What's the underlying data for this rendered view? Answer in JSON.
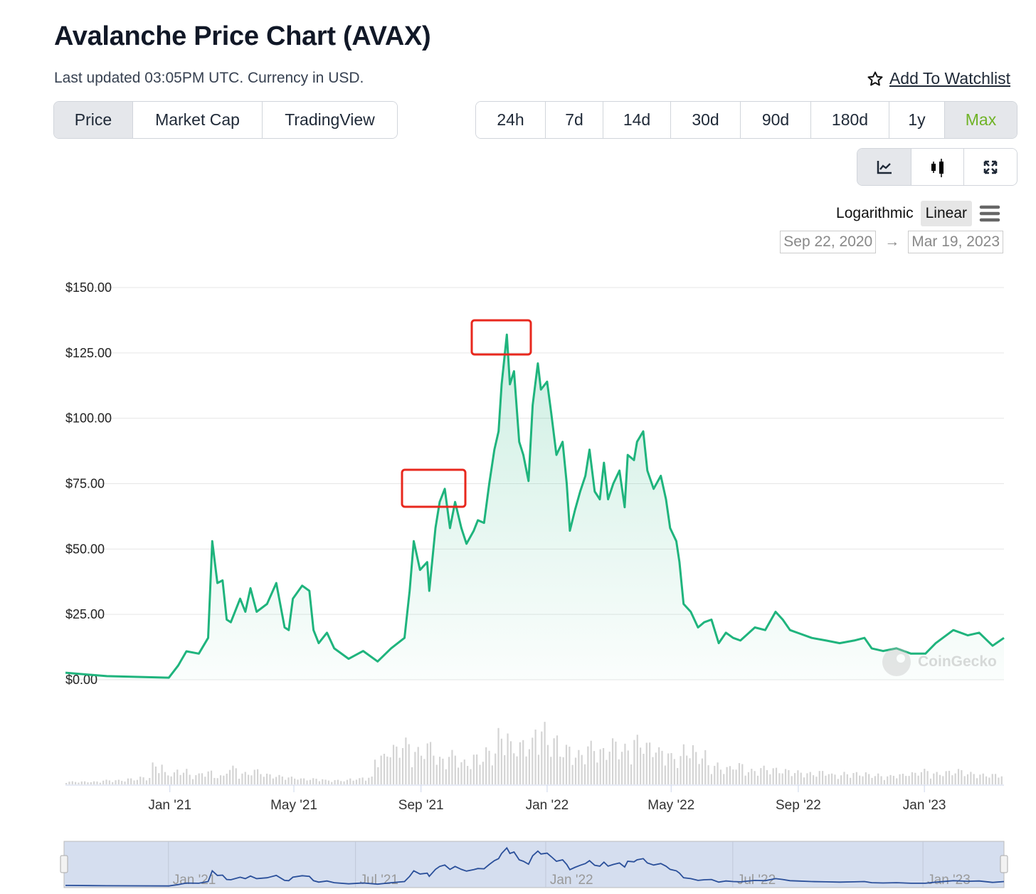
{
  "header": {
    "title": "Avalanche Price Chart (AVAX)",
    "subtitle": "Last updated 03:05PM UTC. Currency in USD.",
    "watchlist": "Add To Watchlist"
  },
  "tabs": [
    {
      "label": "Price",
      "active": true
    },
    {
      "label": "Market Cap"
    },
    {
      "label": "TradingView"
    }
  ],
  "ranges": [
    {
      "label": "24h"
    },
    {
      "label": "7d"
    },
    {
      "label": "14d"
    },
    {
      "label": "30d"
    },
    {
      "label": "90d"
    },
    {
      "label": "180d"
    },
    {
      "label": "1y"
    },
    {
      "label": "Max",
      "active": true
    }
  ],
  "chart_tools": [
    "line-chart-icon",
    "candlestick-icon",
    "fullscreen-icon"
  ],
  "scale": {
    "log": "Logarithmic",
    "linear": "Linear",
    "active": "Linear"
  },
  "date_range": {
    "from": "Sep 22, 2020",
    "to": "Mar 19, 2023",
    "arrow": "→"
  },
  "colors": {
    "line": "#1fb47d",
    "accent": "#6fb326",
    "highlight": "#e8281e",
    "nav_line": "#2a4f9a",
    "nav_bg": "#d5deef"
  },
  "watermark": "CoinGecko",
  "chart_data": {
    "type": "line",
    "title": "Avalanche Price Chart (AVAX)",
    "x_unit": "days since Sep 22, 2020",
    "xlim": [
      0,
      908
    ],
    "ylim": [
      0,
      150
    ],
    "yticks": [
      {
        "v": 0,
        "label": "$0.00"
      },
      {
        "v": 25,
        "label": "$25.00"
      },
      {
        "v": 50,
        "label": "$50.00"
      },
      {
        "v": 75,
        "label": "$75.00"
      },
      {
        "v": 100,
        "label": "$100.00"
      },
      {
        "v": 125,
        "label": "$125.00"
      },
      {
        "v": 150,
        "label": "$150.00"
      }
    ],
    "xticks": [
      {
        "d": 101,
        "label": "Jan '21"
      },
      {
        "d": 221,
        "label": "May '21"
      },
      {
        "d": 344,
        "label": "Sep '21"
      },
      {
        "d": 466,
        "label": "Jan '22"
      },
      {
        "d": 586,
        "label": "May '22"
      },
      {
        "d": 709,
        "label": "Sep '22"
      },
      {
        "d": 831,
        "label": "Jan '23"
      }
    ],
    "nav_ticks": [
      {
        "d": 101,
        "label": "Jan '21"
      },
      {
        "d": 282,
        "label": "Jul '21"
      },
      {
        "d": 466,
        "label": "Jan '22"
      },
      {
        "d": 647,
        "label": "Jul '22"
      },
      {
        "d": 831,
        "label": "Jan '23"
      }
    ],
    "series": [
      {
        "name": "AVAX Price (USD)",
        "points": [
          [
            0,
            2.7
          ],
          [
            40,
            1.4
          ],
          [
            100,
            0.8
          ],
          [
            109,
            5.4
          ],
          [
            117,
            10.9
          ],
          [
            129,
            10
          ],
          [
            138,
            16
          ],
          [
            142,
            53
          ],
          [
            147,
            37
          ],
          [
            152,
            38
          ],
          [
            156,
            23
          ],
          [
            160,
            22
          ],
          [
            169,
            31
          ],
          [
            174,
            26
          ],
          [
            179,
            35
          ],
          [
            185,
            26
          ],
          [
            195,
            29
          ],
          [
            204,
            37
          ],
          [
            212,
            20
          ],
          [
            216,
            19
          ],
          [
            220,
            31
          ],
          [
            229,
            36
          ],
          [
            236,
            34
          ],
          [
            240,
            19
          ],
          [
            245,
            14
          ],
          [
            253,
            18
          ],
          [
            260,
            12
          ],
          [
            274,
            8
          ],
          [
            288,
            11
          ],
          [
            302,
            7
          ],
          [
            315,
            12
          ],
          [
            328,
            16
          ],
          [
            333,
            34
          ],
          [
            337,
            53
          ],
          [
            343,
            42
          ],
          [
            350,
            45
          ],
          [
            352,
            34
          ],
          [
            358,
            58
          ],
          [
            362,
            68
          ],
          [
            367,
            73
          ],
          [
            372,
            58
          ],
          [
            377,
            68
          ],
          [
            383,
            58
          ],
          [
            388,
            52
          ],
          [
            395,
            57
          ],
          [
            399,
            61
          ],
          [
            405,
            60
          ],
          [
            410,
            75
          ],
          [
            415,
            88
          ],
          [
            419,
            95
          ],
          [
            422,
            113
          ],
          [
            427,
            132
          ],
          [
            430,
            113
          ],
          [
            434,
            118
          ],
          [
            439,
            91
          ],
          [
            443,
            86
          ],
          [
            448,
            76
          ],
          [
            452,
            105
          ],
          [
            457,
            121
          ],
          [
            460,
            111
          ],
          [
            466,
            114
          ],
          [
            470,
            102
          ],
          [
            475,
            86
          ],
          [
            481,
            91
          ],
          [
            485,
            75
          ],
          [
            488,
            57
          ],
          [
            493,
            65
          ],
          [
            498,
            72
          ],
          [
            503,
            78
          ],
          [
            507,
            88
          ],
          [
            512,
            72
          ],
          [
            517,
            69
          ],
          [
            521,
            83
          ],
          [
            525,
            69
          ],
          [
            530,
            75
          ],
          [
            536,
            80
          ],
          [
            541,
            66
          ],
          [
            544,
            86
          ],
          [
            550,
            84
          ],
          [
            553,
            91
          ],
          [
            559,
            95
          ],
          [
            563,
            80
          ],
          [
            569,
            73
          ],
          [
            576,
            78
          ],
          [
            581,
            69
          ],
          [
            585,
            58
          ],
          [
            591,
            53
          ],
          [
            594,
            45
          ],
          [
            598,
            29
          ],
          [
            605,
            26
          ],
          [
            612,
            20
          ],
          [
            618,
            22
          ],
          [
            625,
            23
          ],
          [
            632,
            14
          ],
          [
            639,
            18
          ],
          [
            646,
            16
          ],
          [
            653,
            15
          ],
          [
            667,
            20
          ],
          [
            677,
            19
          ],
          [
            687,
            26
          ],
          [
            694,
            23
          ],
          [
            701,
            19
          ],
          [
            708,
            18
          ],
          [
            722,
            16
          ],
          [
            736,
            15
          ],
          [
            749,
            14
          ],
          [
            763,
            15
          ],
          [
            773,
            16
          ],
          [
            780,
            12
          ],
          [
            791,
            11
          ],
          [
            804,
            12
          ],
          [
            818,
            10
          ],
          [
            832,
            10
          ],
          [
            842,
            14
          ],
          [
            859,
            19
          ],
          [
            873,
            17
          ],
          [
            884,
            18
          ],
          [
            897,
            13
          ],
          [
            908,
            16
          ]
        ]
      }
    ],
    "volume_relative": [
      2,
      2,
      2,
      3,
      3,
      4,
      5,
      14,
      8,
      10,
      7,
      9,
      6,
      12,
      8,
      10,
      7,
      6,
      5,
      4,
      4,
      3,
      3,
      4,
      5,
      20,
      26,
      30,
      24,
      28,
      18,
      22,
      16,
      20,
      24,
      36,
      28,
      30,
      40,
      32,
      26,
      22,
      28,
      24,
      30,
      26,
      32,
      28,
      24,
      20,
      26,
      22,
      14,
      12,
      14,
      10,
      12,
      11,
      10,
      9,
      8,
      9,
      7,
      8,
      8,
      7,
      6,
      7,
      8,
      10,
      8,
      9,
      10,
      8,
      7,
      7
    ],
    "annotations": [
      "highlight box around Sep–Oct '21 peak",
      "highlight box around Nov '21 all-time high"
    ]
  }
}
